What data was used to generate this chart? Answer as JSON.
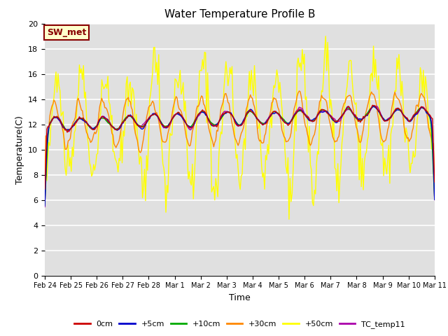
{
  "title": "Water Temperature Profile B",
  "xlabel": "Time",
  "ylabel": "Temperature(C)",
  "ylim": [
    0,
    20
  ],
  "yticks": [
    0,
    2,
    4,
    6,
    8,
    10,
    12,
    14,
    16,
    18,
    20
  ],
  "bg_color": "#e0e0e0",
  "grid_color": "white",
  "annotation_text": "SW_met",
  "annotation_bg": "#ffffcc",
  "annotation_border": "#880000",
  "series_colors": {
    "0cm": "#cc0000",
    "+5cm": "#0000cc",
    "+10cm": "#00aa00",
    "+30cm": "#ff8800",
    "+50cm": "#ffff00",
    "TC_temp11": "#aa00aa"
  },
  "x_tick_labels": [
    "Feb 24",
    "Feb 25",
    "Feb 26",
    "Feb 27",
    "Feb 28",
    "Mar 1",
    "Mar 2",
    "Mar 3",
    "Mar 4",
    "Mar 5",
    "Mar 6",
    "Mar 7",
    "Mar 8",
    "Mar 9",
    "Mar 10",
    "Mar 11"
  ],
  "n_days": 16,
  "points_per_day": 24
}
